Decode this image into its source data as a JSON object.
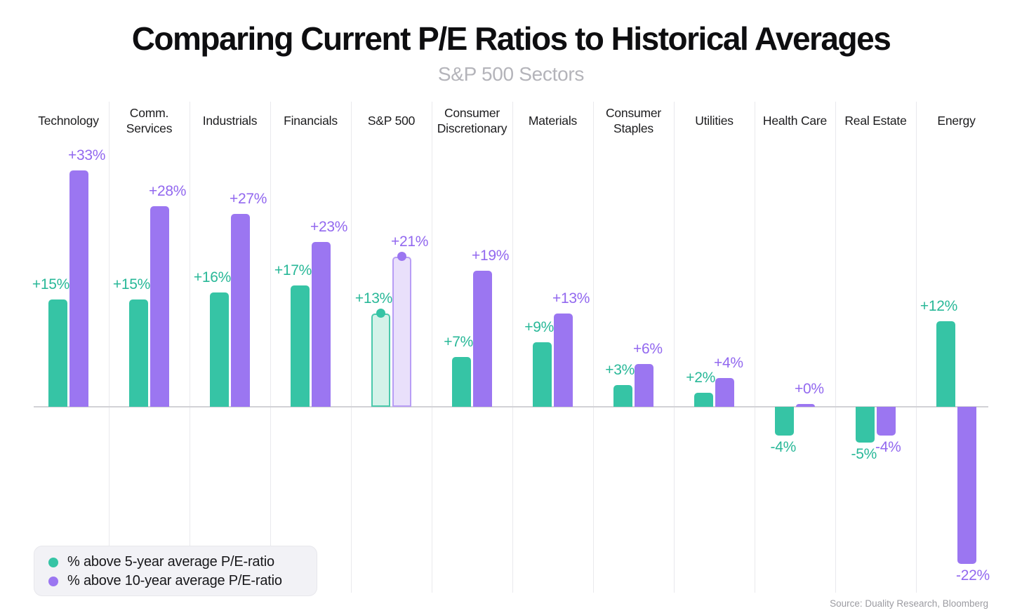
{
  "title": "Comparing Current P/E Ratios to Historical Averages",
  "subtitle": "S&P 500 Sectors",
  "source": "Source: Duality Research, Bloomberg",
  "legend": {
    "items": [
      {
        "label": "% above 5-year average P/E-ratio",
        "color": "#36c4a5"
      },
      {
        "label": "% above 10-year average P/E-ratio",
        "color": "#9b76f1"
      }
    ]
  },
  "chart_data": {
    "type": "bar",
    "title": "Comparing Current P/E Ratios to Historical Averages",
    "subtitle": "S&P 500 Sectors",
    "categories": [
      "Technology",
      "Comm. Services",
      "Industrials",
      "Financials",
      "S&P 500",
      "Consumer Discretionary",
      "Materials",
      "Consumer Staples",
      "Utilities",
      "Health Care",
      "Real Estate",
      "Energy"
    ],
    "highlight_category": "S&P 500",
    "series": [
      {
        "name": "% above 5-year average P/E-ratio",
        "color": "#36c4a5",
        "highlight_fill": "#d4f2e9",
        "highlight_border": "#4bc9ac",
        "label_color": "#29b898",
        "values": [
          15,
          15,
          16,
          17,
          13,
          7,
          9,
          3,
          2,
          -4,
          -5,
          12
        ],
        "labels": [
          "+15%",
          "+15%",
          "+16%",
          "+17%",
          "+13%",
          "+7%",
          "+9%",
          "+3%",
          "+2%",
          "-4%",
          "-5%",
          "+12%"
        ]
      },
      {
        "name": "% above 10-year average P/E-ratio",
        "color": "#9b76f1",
        "highlight_fill": "#e9e0fb",
        "highlight_border": "#b89df5",
        "label_color": "#9268ef",
        "values": [
          33,
          28,
          27,
          23,
          21,
          19,
          13,
          6,
          4,
          0,
          -4,
          -22
        ],
        "labels": [
          "+33%",
          "+28%",
          "+27%",
          "+23%",
          "+21%",
          "+19%",
          "+13%",
          "+6%",
          "+4%",
          "+0%",
          "-4%",
          "-22%"
        ]
      }
    ],
    "ylim": [
      -25,
      36
    ],
    "grid": "vertical-column-separators",
    "legend_position": "bottom-left"
  }
}
